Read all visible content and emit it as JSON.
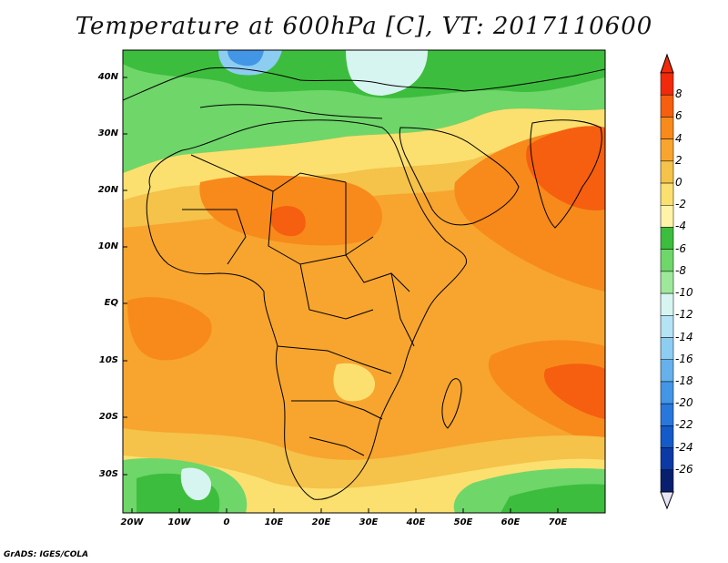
{
  "title": "Temperature at 600hPa [C], VT: 2017110600",
  "footer": "GrADS: IGES/COLA",
  "axes": {
    "lat_labels": [
      "40N",
      "30N",
      "20N",
      "10N",
      "EQ",
      "10S",
      "20S",
      "30S"
    ],
    "lon_labels": [
      "20W",
      "10W",
      "0",
      "10E",
      "20E",
      "30E",
      "40E",
      "50E",
      "60E",
      "70E"
    ]
  },
  "colorbar": {
    "labels": [
      "8",
      "6",
      "4",
      "2",
      "0",
      "-2",
      "-4",
      "-6",
      "-8",
      "-10",
      "-12",
      "-14",
      "-16",
      "-18",
      "-20",
      "-22",
      "-24",
      "-26"
    ],
    "colors": [
      "#f02a0a",
      "#f55f0f",
      "#f78a1b",
      "#f7a52f",
      "#f5c24a",
      "#fbe06f",
      "#fff3a8",
      "#3dbd3d",
      "#6fd66a",
      "#9ee89a",
      "#d7f5f0",
      "#b4e3f5",
      "#8dcdf2",
      "#66b1ec",
      "#4395e6",
      "#2877dc",
      "#145ac8",
      "#0b3aa6",
      "#081f6e"
    ]
  },
  "map": {
    "lon_range": [
      -22,
      80
    ],
    "lat_range": [
      -37,
      45
    ]
  }
}
